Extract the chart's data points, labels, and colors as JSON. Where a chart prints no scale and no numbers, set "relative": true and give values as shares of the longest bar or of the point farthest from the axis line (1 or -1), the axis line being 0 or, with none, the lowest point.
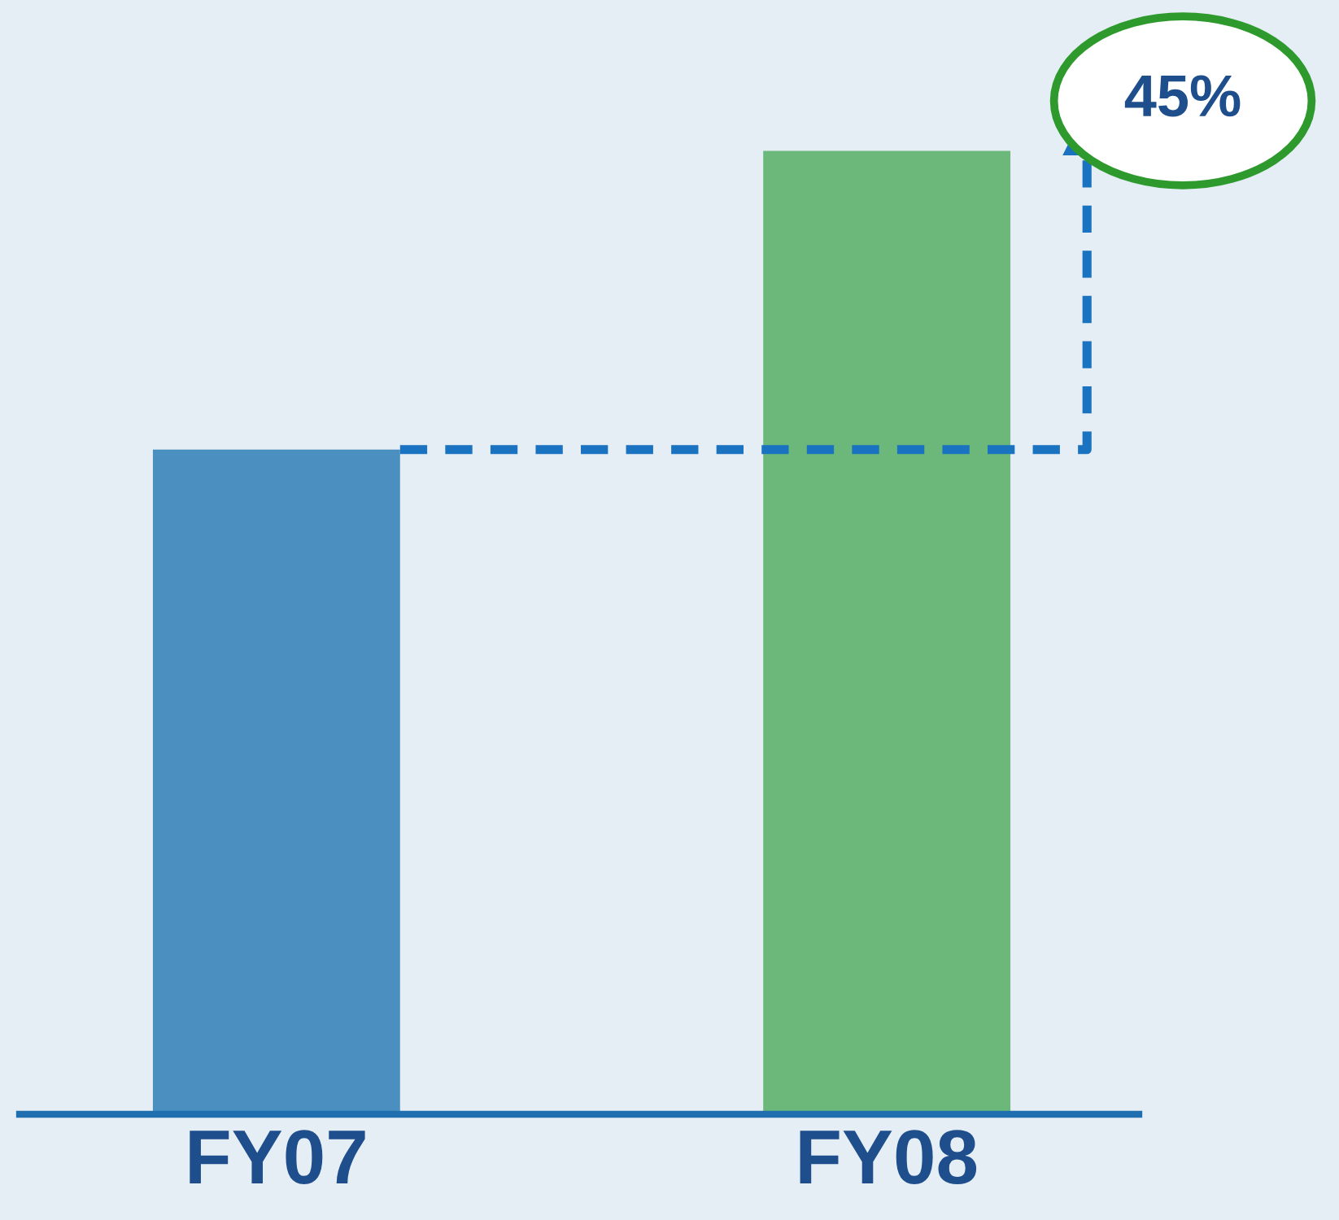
{
  "chart_data": {
    "type": "bar",
    "relative": true,
    "categories": [
      "FY07",
      "FY08"
    ],
    "values": [
      0.69,
      1
    ],
    "colors": [
      "#4a8fc0",
      "#6cb87a"
    ],
    "annotations": [
      "45%"
    ],
    "grid": false,
    "legend": false
  }
}
